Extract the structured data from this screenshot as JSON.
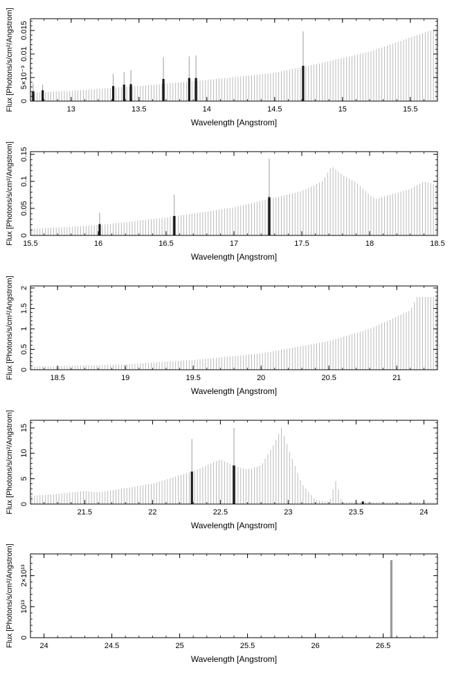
{
  "chart_data": [
    {
      "type": "bar",
      "xlabel": "Wavelength [Angstrom]",
      "ylabel": "Flux [Photons/s/cm²/Angstrom]",
      "xlim": [
        12.7,
        15.7
      ],
      "ylim": [
        0,
        0.0175
      ],
      "x_ticks": [
        13,
        13.5,
        14,
        14.5,
        15,
        15.5
      ],
      "x_tick_labels": [
        "13",
        "13.5",
        "14",
        "14.5",
        "15",
        "15.5"
      ],
      "y_ticks": [
        0,
        0.005,
        0.01,
        0.015
      ],
      "y_tick_labels": [
        "0",
        "5×10⁻³",
        "0.01",
        "0.015"
      ],
      "bin_width": 0.02,
      "continuum": [
        [
          12.7,
          0.0018
        ],
        [
          13.0,
          0.0022
        ],
        [
          13.5,
          0.0032
        ],
        [
          14.0,
          0.0045
        ],
        [
          14.5,
          0.006
        ],
        [
          14.8,
          0.0078
        ],
        [
          15.2,
          0.0105
        ],
        [
          15.5,
          0.0135
        ],
        [
          15.7,
          0.0155
        ]
      ],
      "features": [],
      "lines": [
        {
          "x": 12.72,
          "value": 0.0021,
          "upper": 0.0038
        },
        {
          "x": 12.79,
          "value": 0.0023,
          "upper": 0.0035
        },
        {
          "x": 13.31,
          "value": 0.0032,
          "upper": 0.0058
        },
        {
          "x": 13.39,
          "value": 0.0035,
          "upper": 0.0062
        },
        {
          "x": 13.44,
          "value": 0.0036,
          "upper": 0.0066
        },
        {
          "x": 13.68,
          "value": 0.0047,
          "upper": 0.0093
        },
        {
          "x": 13.87,
          "value": 0.0049,
          "upper": 0.0095
        },
        {
          "x": 13.92,
          "value": 0.0049,
          "upper": 0.0097
        },
        {
          "x": 14.71,
          "value": 0.0075,
          "upper": 0.0148
        }
      ]
    },
    {
      "type": "bar",
      "xlabel": "Wavelength [Angstrom]",
      "ylabel": "Flux [Photons/s/cm²/Angstrom]",
      "xlim": [
        15.5,
        18.5
      ],
      "ylim": [
        0,
        0.155
      ],
      "x_ticks": [
        15.5,
        16,
        16.5,
        17,
        17.5,
        18,
        18.5
      ],
      "x_tick_labels": [
        "15.5",
        "16",
        "16.5",
        "17",
        "17.5",
        "18",
        "18.5"
      ],
      "y_ticks": [
        0,
        0.05,
        0.1,
        0.15
      ],
      "y_tick_labels": [
        "0",
        "0.05",
        "0.1",
        "0.15"
      ],
      "bin_width": 0.02,
      "continuum": [
        [
          15.5,
          0.012
        ],
        [
          16.0,
          0.019
        ],
        [
          16.5,
          0.033
        ],
        [
          17.0,
          0.052
        ],
        [
          17.5,
          0.082
        ],
        [
          17.65,
          0.1
        ],
        [
          17.72,
          0.128
        ],
        [
          17.8,
          0.112
        ],
        [
          17.9,
          0.098
        ],
        [
          18.0,
          0.075
        ],
        [
          18.05,
          0.068
        ],
        [
          18.3,
          0.086
        ],
        [
          18.4,
          0.1
        ],
        [
          18.5,
          0.093
        ]
      ],
      "features": [],
      "lines": [
        {
          "x": 16.01,
          "value": 0.021,
          "upper": 0.042
        },
        {
          "x": 16.56,
          "value": 0.036,
          "upper": 0.075
        },
        {
          "x": 17.26,
          "value": 0.071,
          "upper": 0.142
        }
      ]
    },
    {
      "type": "bar",
      "xlabel": "Wavelength [Angstrom]",
      "ylabel": "Flux [Photons/s/cm²/Angstrom]",
      "xlim": [
        18.3,
        21.3
      ],
      "ylim": [
        0,
        2.05
      ],
      "x_ticks": [
        18.5,
        19,
        19.5,
        20,
        20.5,
        21
      ],
      "x_tick_labels": [
        "18.5",
        "19",
        "19.5",
        "20",
        "20.5",
        "21"
      ],
      "y_ticks": [
        0,
        0.5,
        1,
        1.5,
        2
      ],
      "y_tick_labels": [
        "0",
        "0.5",
        "1",
        "1.5",
        "2"
      ],
      "bin_width": 0.02,
      "continuum": [
        [
          18.3,
          0.08
        ],
        [
          18.5,
          0.09
        ],
        [
          19.0,
          0.13
        ],
        [
          19.5,
          0.24
        ],
        [
          20.0,
          0.4
        ],
        [
          20.5,
          0.7
        ],
        [
          20.8,
          1.0
        ],
        [
          21.0,
          1.3
        ],
        [
          21.1,
          1.45
        ],
        [
          21.15,
          1.78
        ],
        [
          21.3,
          1.78
        ]
      ],
      "features": [],
      "lines": []
    },
    {
      "type": "bar",
      "xlabel": "Wavelength [Angstrom]",
      "ylabel": "Flux [Photons/s/cm²/Angstrom]",
      "xlim": [
        21.1,
        24.1
      ],
      "ylim": [
        0,
        16.5
      ],
      "x_ticks": [
        21.5,
        22,
        22.5,
        23,
        23.5,
        24
      ],
      "x_tick_labels": [
        "21.5",
        "22",
        "22.5",
        "23",
        "23.5",
        "24"
      ],
      "y_ticks": [
        0,
        5,
        10,
        15
      ],
      "y_tick_labels": [
        "0",
        "5",
        "10",
        "15"
      ],
      "bin_width": 0.02,
      "continuum": [
        [
          21.1,
          1.6
        ],
        [
          21.3,
          2.0
        ],
        [
          21.5,
          2.6
        ],
        [
          21.6,
          2.3
        ],
        [
          22.0,
          4.0
        ],
        [
          22.3,
          6.5
        ],
        [
          22.5,
          8.8
        ],
        [
          22.6,
          7.5
        ],
        [
          22.7,
          6.8
        ],
        [
          22.8,
          7.6
        ],
        [
          22.9,
          12.0
        ],
        [
          22.95,
          15.0
        ],
        [
          23.0,
          11.0
        ],
        [
          23.1,
          4.0
        ],
        [
          23.2,
          0.8
        ],
        [
          23.3,
          0.4
        ],
        [
          24.1,
          0.4
        ]
      ],
      "features": [
        {
          "center": 23.35,
          "amplitude": 4.1,
          "sigma": 0.02
        }
      ],
      "lines": [
        {
          "x": 22.29,
          "value": 6.4,
          "upper": 12.8
        },
        {
          "x": 22.6,
          "value": 7.6,
          "upper": 15.0
        },
        {
          "x": 23.55,
          "value": 0.5,
          "upper": 0.6
        }
      ]
    },
    {
      "type": "bar",
      "xlabel": "Wavelength [Angstrom]",
      "ylabel": "Flux [Photons/s/cm²/Angstrom]",
      "xlim": [
        23.9,
        26.9
      ],
      "ylim": [
        0,
        27000000000000.0
      ],
      "x_ticks": [
        24,
        24.5,
        25,
        25.5,
        26,
        26.5
      ],
      "x_tick_labels": [
        "24",
        "24.5",
        "25",
        "25.5",
        "26",
        "26.5"
      ],
      "y_ticks": [
        0,
        10000000000000.0,
        20000000000000.0
      ],
      "y_tick_labels": [
        "0",
        "10¹³",
        "2×10¹³"
      ],
      "bin_width": 0.02,
      "continuum": [
        [
          23.9,
          0
        ],
        [
          26.9,
          0
        ]
      ],
      "features": [],
      "lines": [
        {
          "x": 26.56,
          "value": 25000000000000.0,
          "upper": 25000000000000.0
        }
      ]
    }
  ]
}
